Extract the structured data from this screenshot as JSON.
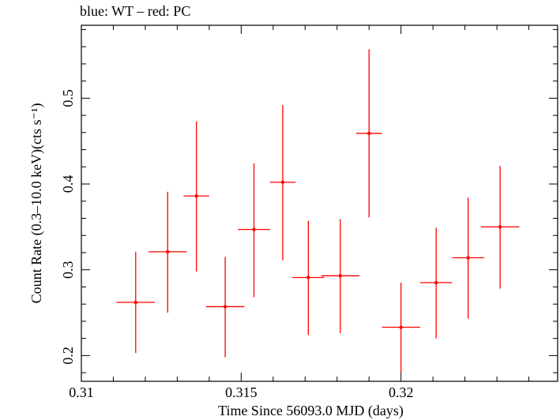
{
  "chart_data": {
    "type": "scatter",
    "title": "blue: WT – red: PC",
    "xlabel": "Time Since 56093.0 MJD (days)",
    "ylabel": "Count Rate (0.3–10.0 keV)(cts s⁻¹)",
    "xlim": [
      0.31,
      0.3249
    ],
    "ylim": [
      0.17,
      0.585
    ],
    "x_ticks": [
      "0.31",
      "0.315",
      "0.32"
    ],
    "y_ticks": [
      "0.2",
      "0.3",
      "0.4",
      "0.5"
    ],
    "grid": false,
    "series": [
      {
        "name": "PC",
        "color": "#ff0000",
        "points": [
          {
            "x": 0.3117,
            "y": 0.262,
            "xerr": 0.0006,
            "ylo": 0.203,
            "yhi": 0.321
          },
          {
            "x": 0.3127,
            "y": 0.321,
            "xerr": 0.0006,
            "ylo": 0.25,
            "yhi": 0.391
          },
          {
            "x": 0.3136,
            "y": 0.386,
            "xerr": 0.0004,
            "ylo": 0.298,
            "yhi": 0.473
          },
          {
            "x": 0.3145,
            "y": 0.257,
            "xerr": 0.0006,
            "ylo": 0.198,
            "yhi": 0.315
          },
          {
            "x": 0.3154,
            "y": 0.347,
            "xerr": 0.0005,
            "ylo": 0.268,
            "yhi": 0.424
          },
          {
            "x": 0.3163,
            "y": 0.402,
            "xerr": 0.0004,
            "ylo": 0.311,
            "yhi": 0.492
          },
          {
            "x": 0.3171,
            "y": 0.291,
            "xerr": 0.0005,
            "ylo": 0.224,
            "yhi": 0.357
          },
          {
            "x": 0.3181,
            "y": 0.293,
            "xerr": 0.0006,
            "ylo": 0.226,
            "yhi": 0.359
          },
          {
            "x": 0.319,
            "y": 0.459,
            "xerr": 0.0004,
            "ylo": 0.361,
            "yhi": 0.557
          },
          {
            "x": 0.32,
            "y": 0.233,
            "xerr": 0.0006,
            "ylo": 0.18,
            "yhi": 0.285
          },
          {
            "x": 0.3211,
            "y": 0.285,
            "xerr": 0.0005,
            "ylo": 0.22,
            "yhi": 0.349
          },
          {
            "x": 0.3221,
            "y": 0.314,
            "xerr": 0.0005,
            "ylo": 0.243,
            "yhi": 0.384
          },
          {
            "x": 0.3231,
            "y": 0.35,
            "xerr": 0.0006,
            "ylo": 0.278,
            "yhi": 0.421
          }
        ]
      }
    ]
  }
}
